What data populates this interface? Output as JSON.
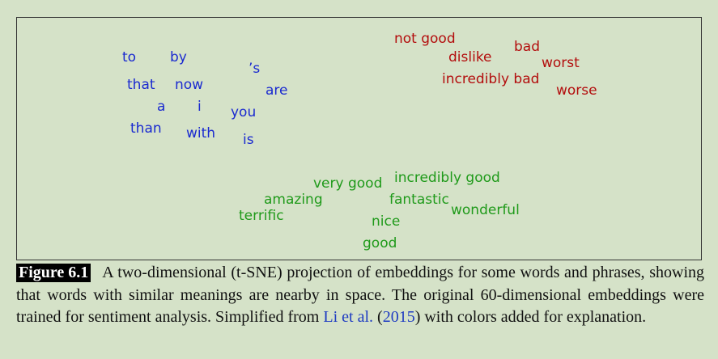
{
  "plot": {
    "words": [
      {
        "text": "to",
        "group": "neutral",
        "color": "#1a2ad0"
      },
      {
        "text": "by",
        "group": "neutral",
        "color": "#1a2ad0"
      },
      {
        "text": "’s",
        "group": "neutral",
        "color": "#1a2ad0"
      },
      {
        "text": "that",
        "group": "neutral",
        "color": "#1a2ad0"
      },
      {
        "text": "now",
        "group": "neutral",
        "color": "#1a2ad0"
      },
      {
        "text": "are",
        "group": "neutral",
        "color": "#1a2ad0"
      },
      {
        "text": "a",
        "group": "neutral",
        "color": "#1a2ad0"
      },
      {
        "text": "i",
        "group": "neutral",
        "color": "#1a2ad0"
      },
      {
        "text": "you",
        "group": "neutral",
        "color": "#1a2ad0"
      },
      {
        "text": "than",
        "group": "neutral",
        "color": "#1a2ad0"
      },
      {
        "text": "with",
        "group": "neutral",
        "color": "#1a2ad0"
      },
      {
        "text": "is",
        "group": "neutral",
        "color": "#1a2ad0"
      },
      {
        "text": "not good",
        "group": "negative",
        "color": "#b30d0d"
      },
      {
        "text": "bad",
        "group": "negative",
        "color": "#b30d0d"
      },
      {
        "text": "dislike",
        "group": "negative",
        "color": "#b30d0d"
      },
      {
        "text": "worst",
        "group": "negative",
        "color": "#b30d0d"
      },
      {
        "text": "incredibly bad",
        "group": "negative",
        "color": "#b30d0d"
      },
      {
        "text": "worse",
        "group": "negative",
        "color": "#b30d0d"
      },
      {
        "text": "very good",
        "group": "positive",
        "color": "#1f9a1a"
      },
      {
        "text": "incredibly good",
        "group": "positive",
        "color": "#1f9a1a"
      },
      {
        "text": "amazing",
        "group": "positive",
        "color": "#1f9a1a"
      },
      {
        "text": "fantastic",
        "group": "positive",
        "color": "#1f9a1a"
      },
      {
        "text": "terrific",
        "group": "positive",
        "color": "#1f9a1a"
      },
      {
        "text": "wonderful",
        "group": "positive",
        "color": "#1f9a1a"
      },
      {
        "text": "nice",
        "group": "positive",
        "color": "#1f9a1a"
      },
      {
        "text": "good",
        "group": "positive",
        "color": "#1f9a1a"
      }
    ]
  },
  "caption": {
    "label": "Figure 6.1",
    "text_before": "A two-dimensional (t-SNE) projection of embeddings for some words and phrases, showing that words with similar meanings are nearby in space. The original 60-dimensional embeddings were trained for sentiment analysis. Simplified from ",
    "citation_author": "Li et al.",
    "citation_year_open": " (",
    "citation_year": "2015",
    "citation_year_close": ")",
    "text_after": " with colors added for explanation."
  }
}
